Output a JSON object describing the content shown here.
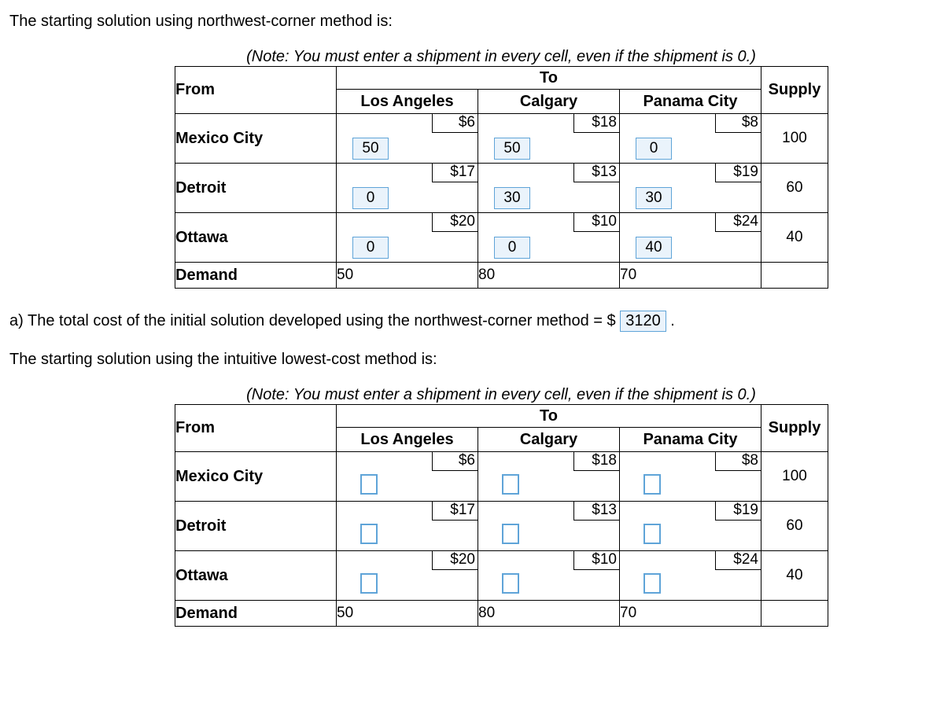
{
  "text": {
    "intro1": "The starting solution using northwest-corner method is:",
    "note": "(Note: You must enter a shipment in every cell, even if the shipment is 0.)",
    "to": "To",
    "from": "From",
    "supply": "Supply",
    "demand": "Demand",
    "answer_a_prefix": "a) The total cost of the initial solution developed using the northwest-corner method = $ ",
    "answer_a_value": "3120",
    "answer_a_suffix": " .",
    "intro2": "The starting solution using the intuitive lowest-cost method is:"
  },
  "destinations": [
    "Los Angeles",
    "Calgary",
    "Panama City"
  ],
  "sources": [
    "Mexico City",
    "Detroit",
    "Ottawa"
  ],
  "costs": {
    "Mexico City": {
      "Los Angeles": "$6",
      "Calgary": "$18",
      "Panama City": "$8"
    },
    "Detroit": {
      "Los Angeles": "$17",
      "Calgary": "$13",
      "Panama City": "$19"
    },
    "Ottawa": {
      "Los Angeles": "$20",
      "Calgary": "$10",
      "Panama City": "$24"
    }
  },
  "supply": {
    "Mexico City": "100",
    "Detroit": "60",
    "Ottawa": "40"
  },
  "demand": {
    "Los Angeles": "50",
    "Calgary": "80",
    "Panama City": "70"
  },
  "tableA_shipments": {
    "Mexico City": {
      "Los Angeles": "50",
      "Calgary": "50",
      "Panama City": "0"
    },
    "Detroit": {
      "Los Angeles": "0",
      "Calgary": "30",
      "Panama City": "30"
    },
    "Ottawa": {
      "Los Angeles": "0",
      "Calgary": "0",
      "Panama City": "40"
    }
  },
  "tableB_shipments": {
    "Mexico City": {
      "Los Angeles": "",
      "Calgary": "",
      "Panama City": ""
    },
    "Detroit": {
      "Los Angeles": "",
      "Calgary": "",
      "Panama City": ""
    },
    "Ottawa": {
      "Los Angeles": "",
      "Calgary": "",
      "Panama City": ""
    }
  },
  "colors": {
    "input_border": "#5fa4d8",
    "input_fill": "#eaf3fb"
  }
}
